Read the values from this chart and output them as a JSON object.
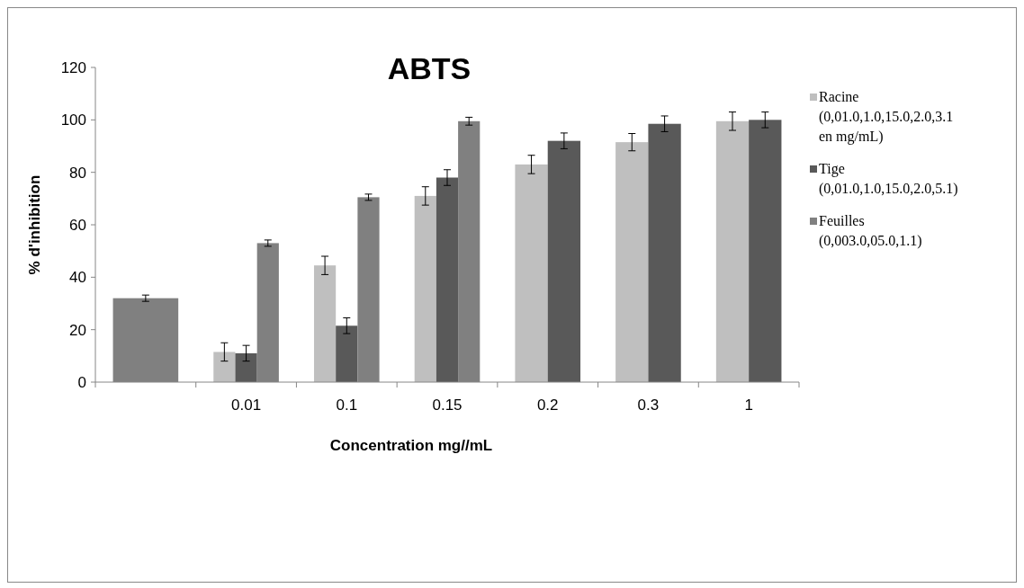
{
  "chart_data": {
    "type": "bar",
    "title": "ABTS",
    "xlabel": "Concentration mg//mL",
    "ylabel": "% d'inhibition",
    "categories": [
      null,
      "0.01",
      "0.1",
      "0.15",
      "0.2",
      "0.3",
      "1"
    ],
    "series": [
      {
        "name": "Racine (0,01.0,1.0,15.0,2.0,3.1 en mg/mL)",
        "color": "#bfbfbf",
        "values": [
          null,
          11.5,
          44.5,
          71,
          83,
          91.5,
          99.5
        ],
        "errors": [
          null,
          3.5,
          3.5,
          3.5,
          3.5,
          3.3,
          3.5
        ]
      },
      {
        "name": "Tige (0,01.0,1.0,15.0,2.0,5.1)",
        "color": "#595959",
        "values": [
          null,
          11,
          21.5,
          78,
          92,
          98.5,
          100
        ],
        "errors": [
          null,
          3,
          3,
          3,
          3,
          3,
          3
        ]
      },
      {
        "name": "Feuilles (0,003.0,05.0,1.1)",
        "color": "#808080",
        "values": [
          32,
          53,
          70.5,
          99.5,
          null,
          null,
          null
        ],
        "errors": [
          1.2,
          1.2,
          1.2,
          1.5,
          null,
          null,
          null
        ]
      }
    ],
    "ylim": [
      0,
      120
    ],
    "yticks": [
      0,
      20,
      40,
      60,
      80,
      100,
      120
    ],
    "grid": false,
    "legend": "right"
  }
}
